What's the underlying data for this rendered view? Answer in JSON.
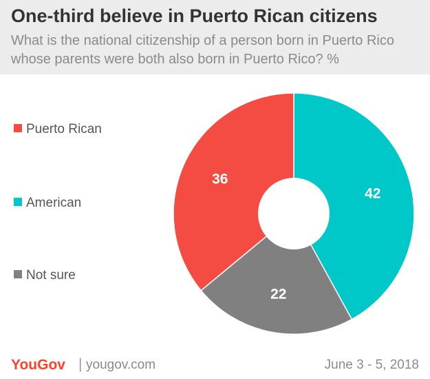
{
  "chart_data": {
    "type": "pie",
    "title": "One-third believe in Puerto Rican citizens",
    "subtitle": "What is the national citizenship of a person born in Puerto Rico whose parents were both also born in Puerto Rico? %",
    "categories": [
      "Puerto Rican",
      "American",
      "Not sure"
    ],
    "values": [
      36,
      42,
      22
    ],
    "colors": [
      "#f44b42",
      "#00c8c8",
      "#808080"
    ],
    "donut": true,
    "legend_position": "left"
  },
  "footer": {
    "brand": "YouGov",
    "separator": "|",
    "site": "yougov.com",
    "date": "June 3 - 5, 2018"
  }
}
